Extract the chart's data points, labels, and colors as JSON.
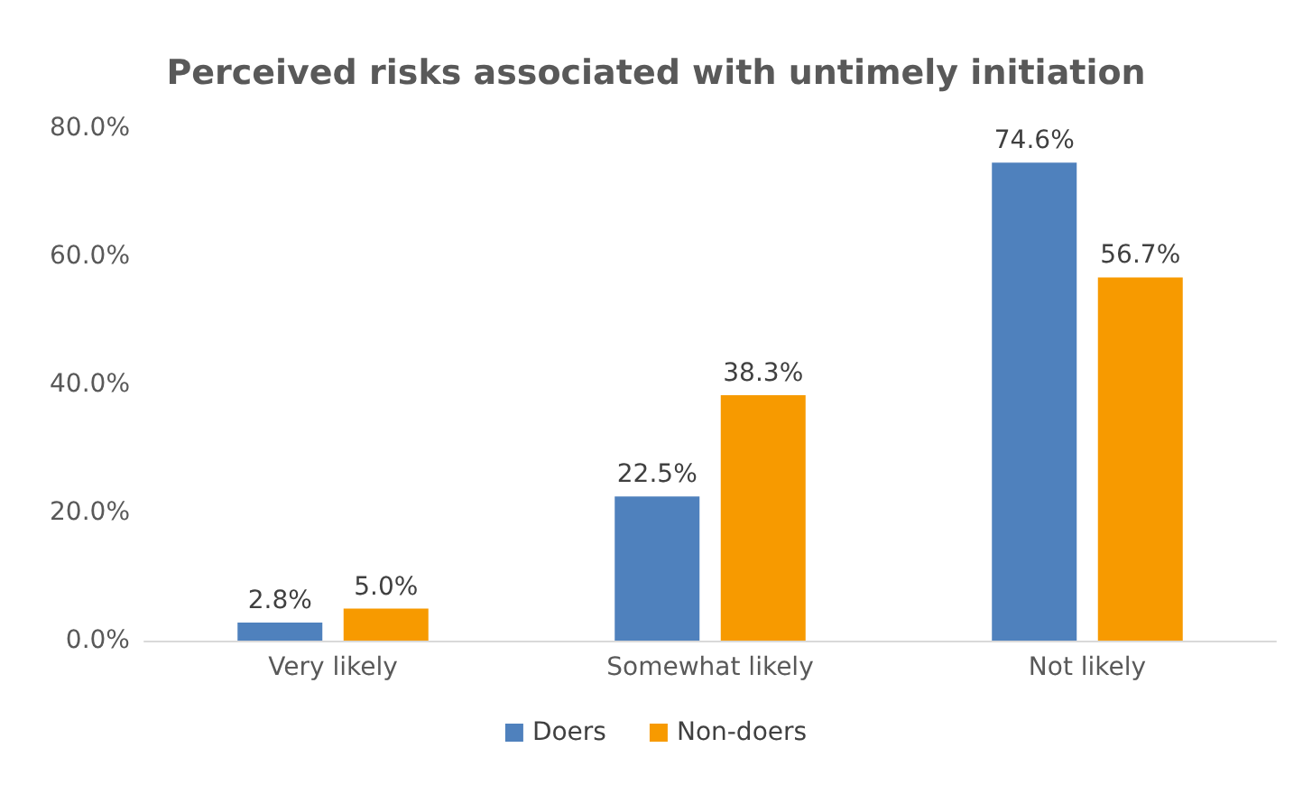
{
  "chart_data": {
    "type": "bar",
    "title": "Perceived risks associated with untimely initiation",
    "categories": [
      "Very likely",
      "Somewhat likely",
      "Not likely"
    ],
    "series": [
      {
        "name": "Doers",
        "color": "#4f81bd",
        "values": [
          2.8,
          22.5,
          74.6
        ],
        "value_labels": [
          "2.8%",
          "22.5%",
          "74.6%"
        ]
      },
      {
        "name": "Non-doers",
        "color": "#f79a00",
        "values": [
          5.0,
          38.3,
          56.7
        ],
        "value_labels": [
          "5.0%",
          "38.3%",
          "56.7%"
        ]
      }
    ],
    "ylim": [
      0,
      80
    ],
    "yticks": [
      {
        "value": 0,
        "label": "0.0%"
      },
      {
        "value": 20,
        "label": "20.0%"
      },
      {
        "value": 40,
        "label": "40.0%"
      },
      {
        "value": 60,
        "label": "60.0%"
      },
      {
        "value": 80,
        "label": "80.0%"
      }
    ],
    "grid": false,
    "legend": "bottom"
  }
}
